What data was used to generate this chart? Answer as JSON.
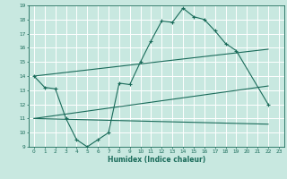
{
  "xlabel": "Humidex (Indice chaleur)",
  "bg_color": "#c8e8e0",
  "grid_color": "#ffffff",
  "line_color": "#1a6b5a",
  "xlim": [
    -0.5,
    23.5
  ],
  "ylim": [
    9,
    19
  ],
  "xticks": [
    0,
    1,
    2,
    3,
    4,
    5,
    6,
    7,
    8,
    9,
    10,
    11,
    12,
    13,
    14,
    15,
    16,
    17,
    18,
    19,
    20,
    21,
    22,
    23
  ],
  "yticks": [
    9,
    10,
    11,
    12,
    13,
    14,
    15,
    16,
    17,
    18,
    19
  ],
  "curve1_x": [
    0,
    1,
    2,
    3,
    4,
    5,
    6,
    7,
    8,
    9,
    10,
    11,
    12,
    13,
    14,
    15,
    16,
    17,
    18,
    19,
    22
  ],
  "curve1_y": [
    14,
    13.2,
    13.1,
    11,
    9.5,
    9.0,
    9.5,
    10.0,
    13.5,
    13.4,
    15.0,
    16.5,
    17.9,
    17.8,
    18.8,
    18.2,
    18.0,
    17.2,
    16.3,
    15.8,
    12.0
  ],
  "curve2_x": [
    0,
    22
  ],
  "curve2_y": [
    14.0,
    15.9
  ],
  "curve3_x": [
    0,
    22
  ],
  "curve3_y": [
    11.0,
    13.3
  ],
  "curve4_x": [
    0,
    22
  ],
  "curve4_y": [
    11.0,
    10.6
  ],
  "tick_fontsize": 4.2,
  "xlabel_fontsize": 5.5
}
